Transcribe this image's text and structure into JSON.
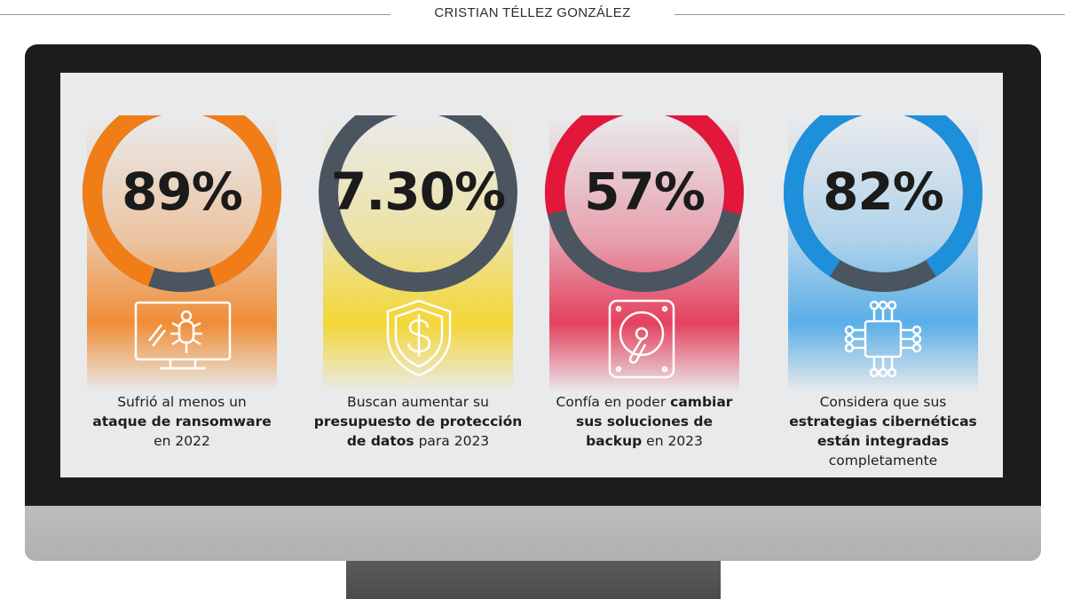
{
  "byline": "CRISTIAN TÉLLEZ GONZÁLEZ",
  "stats": [
    {
      "value": "89%",
      "fraction": 0.89,
      "ring_color": "#f07d16",
      "icon": "infected-computer-bug-icon",
      "caption": {
        "line1": "Sufrió al menos un",
        "line2": "ataque de ransomware",
        "line3": "en 2022"
      }
    },
    {
      "value": "7.30%",
      "fraction": 0.073,
      "ring_color": "#f5c518",
      "icon": "shield-dollar-icon",
      "caption": {
        "line1": "Buscan aumentar su",
        "line2": "presupuesto de protección",
        "line3a": "de datos",
        "line3b": " para 2023"
      }
    },
    {
      "value": "57%",
      "fraction": 0.57,
      "ring_color": "#e2173a",
      "icon": "hard-drive-icon",
      "caption": {
        "line1a": "Confía en poder ",
        "line1b": "cambiar",
        "line2": "sus soluciones de",
        "line3a": "backup",
        "line3b": " en 2023"
      }
    },
    {
      "value": "82%",
      "fraction": 0.82,
      "ring_color": "#1e8fdb",
      "icon": "microchip-icon",
      "caption": {
        "line1": "Considera  que sus",
        "line2": "estrategias cibernéticas",
        "line3": "están integradas",
        "line4": "completamente"
      }
    }
  ],
  "colors": {
    "ring_track": "#4a5560",
    "frame": "#1c1c1c",
    "screen": "#e9eaec"
  }
}
